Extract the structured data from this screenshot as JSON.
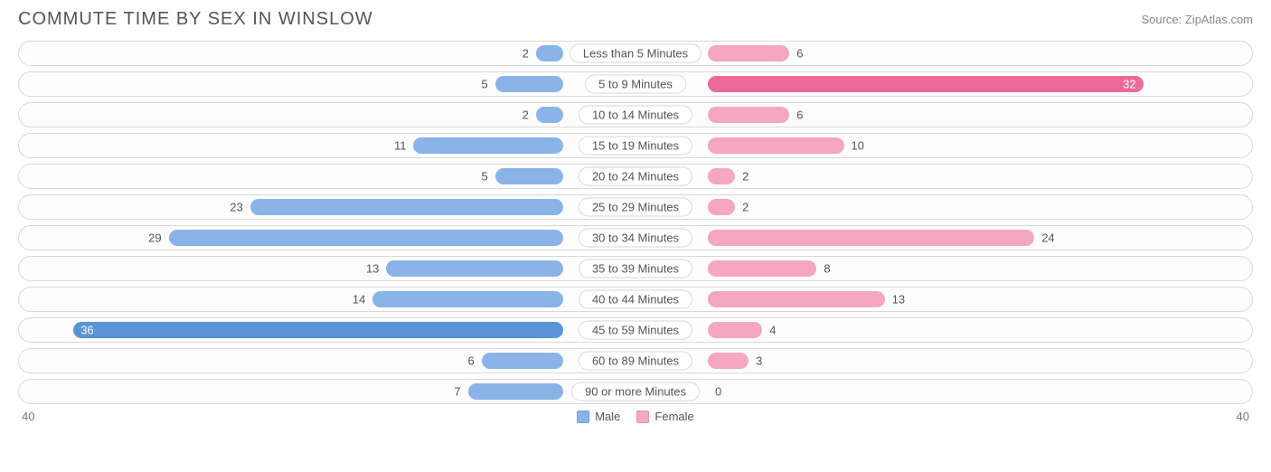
{
  "header": {
    "title": "COMMUTE TIME BY SEX IN WINSLOW",
    "source": "Source: ZipAtlas.com"
  },
  "chart": {
    "type": "diverging-bar",
    "axis_max": 40,
    "axis_max_label_left": "40",
    "axis_max_label_right": "40",
    "background_color": "#ffffff",
    "row_border_color": "#d8d8d8",
    "text_color": "#555555",
    "male": {
      "fill": "#8ab4e8",
      "fill_dark": "#5a93d8",
      "label": "Male"
    },
    "female": {
      "fill": "#f5a7c2",
      "fill_dark": "#ec6a9a",
      "label": "Female"
    },
    "rows": [
      {
        "category": "Less than 5 Minutes",
        "male": 2,
        "female": 6
      },
      {
        "category": "5 to 9 Minutes",
        "male": 5,
        "female": 32
      },
      {
        "category": "10 to 14 Minutes",
        "male": 2,
        "female": 6
      },
      {
        "category": "15 to 19 Minutes",
        "male": 11,
        "female": 10
      },
      {
        "category": "20 to 24 Minutes",
        "male": 5,
        "female": 2
      },
      {
        "category": "25 to 29 Minutes",
        "male": 23,
        "female": 2
      },
      {
        "category": "30 to 34 Minutes",
        "male": 29,
        "female": 24
      },
      {
        "category": "35 to 39 Minutes",
        "male": 13,
        "female": 8
      },
      {
        "category": "40 to 44 Minutes",
        "male": 14,
        "female": 13
      },
      {
        "category": "45 to 59 Minutes",
        "male": 36,
        "female": 4
      },
      {
        "category": "60 to 89 Minutes",
        "male": 6,
        "female": 3
      },
      {
        "category": "90 or more Minutes",
        "male": 7,
        "female": 0
      }
    ],
    "inside_label_threshold": 30
  }
}
